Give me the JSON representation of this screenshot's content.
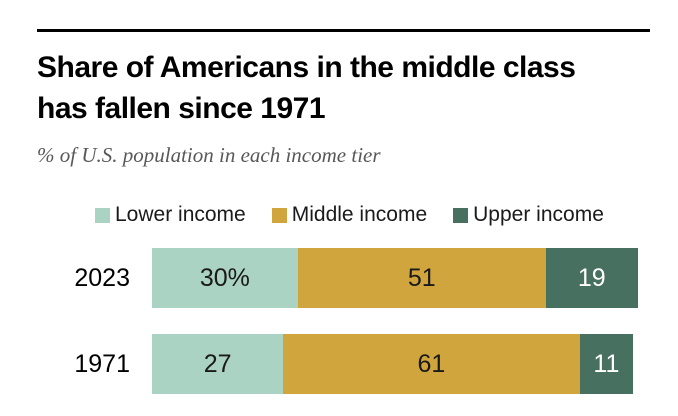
{
  "header": {
    "title_line1": "Share of Americans in the middle class",
    "title_line2": "has fallen since 1971",
    "subtitle": "% of U.S. population in each income tier"
  },
  "legend": {
    "items": [
      {
        "label": "Lower income",
        "color": "#abd3c4"
      },
      {
        "label": "Middle income",
        "color": "#d1a53d"
      },
      {
        "label": "Upper income",
        "color": "#477060"
      }
    ]
  },
  "rows": [
    {
      "label": "2023",
      "segments": [
        {
          "text": "30%",
          "value": 30,
          "color": "#abd3c4",
          "text_color": "#1a1a1a"
        },
        {
          "text": "51",
          "value": 51,
          "color": "#d1a53d",
          "text_color": "#1a1a1a"
        },
        {
          "text": "19",
          "value": 19,
          "color": "#477060",
          "text_color": "#ffffff"
        }
      ]
    },
    {
      "label": "1971",
      "segments": [
        {
          "text": "27",
          "value": 27,
          "color": "#abd3c4",
          "text_color": "#1a1a1a"
        },
        {
          "text": "61",
          "value": 61,
          "color": "#d1a53d",
          "text_color": "#1a1a1a"
        },
        {
          "text": "11",
          "value": 11,
          "color": "#477060",
          "text_color": "#ffffff"
        }
      ]
    }
  ],
  "colors": {
    "lower_income": "#abd3c4",
    "middle_income": "#d1a53d",
    "upper_income": "#477060",
    "title_text": "#000000",
    "subtitle_text": "#58585a",
    "top_rule": "#000000"
  },
  "chart_data": {
    "type": "bar",
    "subtype": "horizontal-stacked",
    "title": "Share of Americans in the middle class has fallen since 1971",
    "subtitle": "% of U.S. population in each income tier",
    "categories": [
      "2023",
      "1971"
    ],
    "series": [
      {
        "name": "Lower income",
        "color": "#abd3c4",
        "values": [
          30,
          27
        ]
      },
      {
        "name": "Middle income",
        "color": "#d1a53d",
        "values": [
          51,
          61
        ]
      },
      {
        "name": "Upper income",
        "color": "#477060",
        "values": [
          19,
          11
        ]
      }
    ],
    "data_labels": [
      [
        "30%",
        "51",
        "19"
      ],
      [
        "27",
        "61",
        "11"
      ]
    ],
    "xlim": [
      0,
      100
    ],
    "xlabel": "",
    "ylabel": "",
    "grid": false,
    "legend_position": "top"
  }
}
